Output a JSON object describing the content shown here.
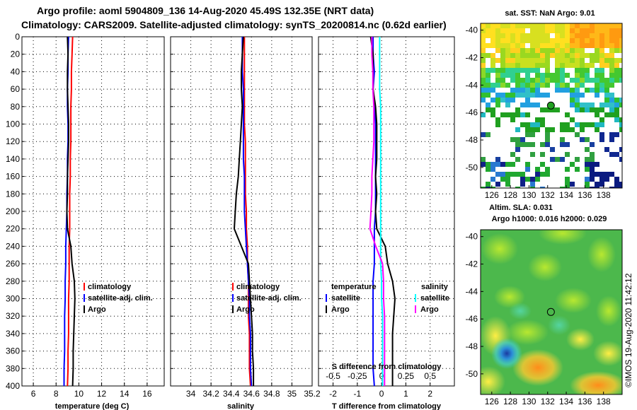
{
  "header": {
    "title_line1": "Argo profile: aoml 5904809_136 14-Aug-2020 45.49S 132.35E (NRT data)",
    "title_line2": "Climatology: CARS2009. Satellite-adjusted climatology: synTS_20200814.nc (0.62d earlier)"
  },
  "colors": {
    "climatology": "#ff0000",
    "satellite": "#0000ff",
    "argo": "#000000",
    "salinity_sat": "#00ffff",
    "salinity_argo": "#ff00ff"
  },
  "chart_data": [
    {
      "type": "line",
      "name": "temperature-profile",
      "xlabel": "temperature (deg C)",
      "ylabel": "depth",
      "xlim": [
        5,
        17.5
      ],
      "ylim": [
        0,
        400
      ],
      "y_inverted": true,
      "xticks": [
        6,
        8,
        10,
        12,
        14,
        16
      ],
      "yticks": [
        0,
        20,
        40,
        60,
        80,
        100,
        120,
        140,
        160,
        180,
        200,
        220,
        240,
        260,
        280,
        300,
        320,
        340,
        360,
        380,
        400
      ],
      "grid": true,
      "legend": [
        "climatology",
        "satellite-adj. clim.",
        "Argo"
      ],
      "series": [
        {
          "name": "climatology",
          "color": "#ff0000",
          "x": [
            9.45,
            9.4,
            9.35,
            9.35,
            9.3,
            9.3,
            9.3,
            9.25,
            9.25,
            9.2,
            9.2,
            9.2,
            9.15,
            9.15,
            9.15,
            9.1,
            9.1,
            9.1,
            9.05,
            9.05,
            9.0
          ],
          "depth": [
            0,
            20,
            40,
            60,
            80,
            100,
            120,
            140,
            160,
            180,
            200,
            220,
            240,
            260,
            280,
            300,
            320,
            340,
            360,
            380,
            400
          ]
        },
        {
          "name": "satellite-adj. clim.",
          "color": "#0000ff",
          "x": [
            9.1,
            9.05,
            9.05,
            9.0,
            9.0,
            9.05,
            9.05,
            9.0,
            9.0,
            8.95,
            8.95,
            8.9,
            8.85,
            8.85,
            8.8,
            8.8,
            8.75,
            8.75,
            8.75,
            8.7,
            8.7
          ],
          "depth": [
            0,
            20,
            40,
            60,
            80,
            100,
            120,
            140,
            160,
            180,
            200,
            220,
            240,
            260,
            280,
            300,
            320,
            340,
            360,
            380,
            400
          ]
        },
        {
          "name": "Argo",
          "color": "#000000",
          "x": [
            9.0,
            9.05,
            9.0,
            9.0,
            9.05,
            9.1,
            9.1,
            9.05,
            9.0,
            9.0,
            8.95,
            9.0,
            9.3,
            9.4,
            9.6,
            9.65,
            9.6,
            9.55,
            9.5,
            9.5,
            9.45
          ],
          "depth": [
            0,
            20,
            40,
            60,
            80,
            100,
            120,
            140,
            160,
            180,
            200,
            220,
            240,
            260,
            280,
            300,
            320,
            340,
            360,
            380,
            400
          ]
        }
      ]
    },
    {
      "type": "line",
      "name": "salinity-profile",
      "xlabel": "salinity",
      "xlim": [
        33.8,
        35.2
      ],
      "ylim": [
        0,
        400
      ],
      "y_inverted": true,
      "xticks": [
        34,
        34.2,
        34.4,
        34.6,
        34.8,
        35,
        35.2
      ],
      "grid": true,
      "legend": [
        "climatology",
        "satellite-adj. clim.",
        "Argo"
      ],
      "series": [
        {
          "name": "climatology",
          "color": "#ff0000",
          "x": [
            34.53,
            34.53,
            34.53,
            34.53,
            34.53,
            34.53,
            34.54,
            34.54,
            34.54,
            34.54,
            34.55,
            34.55,
            34.56,
            34.56,
            34.57,
            34.57,
            34.57,
            34.58,
            34.58,
            34.58,
            34.59
          ],
          "depth": [
            0,
            20,
            40,
            60,
            80,
            100,
            120,
            140,
            160,
            180,
            200,
            220,
            240,
            260,
            280,
            300,
            320,
            340,
            360,
            380,
            400
          ]
        },
        {
          "name": "satellite-adj. clim.",
          "color": "#0000ff",
          "x": [
            34.51,
            34.51,
            34.51,
            34.52,
            34.52,
            34.52,
            34.52,
            34.52,
            34.53,
            34.53,
            34.53,
            34.54,
            34.55,
            34.56,
            34.57,
            34.58,
            34.58,
            34.59,
            34.59,
            34.59,
            34.6
          ],
          "depth": [
            0,
            20,
            40,
            60,
            80,
            100,
            120,
            140,
            160,
            180,
            200,
            220,
            240,
            260,
            280,
            300,
            320,
            340,
            360,
            380,
            400
          ]
        },
        {
          "name": "Argo",
          "color": "#000000",
          "x": [
            34.52,
            34.51,
            34.5,
            34.5,
            34.51,
            34.5,
            34.49,
            34.48,
            34.47,
            34.45,
            34.44,
            34.43,
            34.5,
            34.57,
            34.58,
            34.59,
            34.6,
            34.61,
            34.61,
            34.62,
            34.62
          ],
          "depth": [
            0,
            20,
            40,
            60,
            80,
            100,
            120,
            140,
            160,
            180,
            200,
            220,
            240,
            260,
            280,
            300,
            320,
            340,
            360,
            380,
            400
          ]
        }
      ]
    },
    {
      "type": "line",
      "name": "difference-profile",
      "xlabel": "T difference from climatology",
      "top_axis_label": "S difference from climatology",
      "xlim": [
        -2.6,
        3.0
      ],
      "ylim": [
        0,
        400
      ],
      "y_inverted": true,
      "xticks": [
        -2,
        -1,
        0,
        1,
        2
      ],
      "top_ticks": [
        "-0.5",
        "-0.25",
        "0",
        "0.25",
        "0.5"
      ],
      "top_ticks_values": [
        -0.5,
        -0.25,
        0,
        0.25,
        0.5
      ],
      "s_scale_factor": 4,
      "grid": true,
      "legend_temperature": {
        "heading": "temperature",
        "items": [
          "satellite",
          "Argo"
        ]
      },
      "legend_salinity": {
        "heading": "salinity",
        "items": [
          "satellite",
          "Argo"
        ]
      },
      "series": [
        {
          "name": "temperature satellite",
          "color": "#0000ff",
          "x": [
            -0.35,
            -0.35,
            -0.3,
            -0.35,
            -0.3,
            -0.25,
            -0.25,
            -0.25,
            -0.25,
            -0.25,
            -0.25,
            -0.3,
            -0.3,
            -0.3,
            -0.35,
            -0.35,
            -0.35,
            -0.35,
            -0.35,
            -0.35,
            -0.3
          ],
          "depth": [
            0,
            20,
            40,
            60,
            80,
            100,
            120,
            140,
            160,
            180,
            200,
            220,
            240,
            260,
            280,
            300,
            320,
            340,
            360,
            380,
            400
          ]
        },
        {
          "name": "temperature Argo",
          "color": "#000000",
          "x": [
            -0.45,
            -0.35,
            -0.35,
            -0.35,
            -0.25,
            -0.2,
            -0.2,
            -0.2,
            -0.25,
            -0.2,
            -0.25,
            -0.2,
            0.15,
            0.25,
            0.45,
            0.55,
            0.5,
            0.45,
            0.45,
            0.45,
            0.45
          ],
          "depth": [
            0,
            20,
            40,
            60,
            80,
            100,
            120,
            140,
            160,
            180,
            200,
            220,
            240,
            260,
            280,
            300,
            320,
            340,
            360,
            380,
            400
          ]
        },
        {
          "name": "salinity satellite",
          "color": "#00ffff",
          "x_s": [
            -0.02,
            -0.02,
            -0.02,
            -0.02,
            -0.01,
            -0.01,
            -0.01,
            -0.01,
            -0.01,
            -0.01,
            -0.01,
            -0.01,
            -0.01,
            -0.01,
            0.0,
            0.0,
            0.01,
            0.01,
            0.01,
            0.01,
            0.01
          ],
          "depth": [
            0,
            20,
            40,
            60,
            80,
            100,
            120,
            140,
            160,
            180,
            200,
            220,
            240,
            260,
            280,
            300,
            320,
            340,
            360,
            380,
            400
          ]
        },
        {
          "name": "salinity Argo",
          "color": "#ff00ff",
          "x_s": [
            -0.1,
            -0.1,
            -0.09,
            -0.09,
            -0.08,
            -0.08,
            -0.08,
            -0.09,
            -0.1,
            -0.1,
            -0.11,
            -0.12,
            -0.06,
            0.01,
            0.02,
            0.02,
            0.03,
            0.03,
            0.03,
            0.03,
            0.03
          ],
          "depth": [
            0,
            20,
            40,
            60,
            80,
            100,
            120,
            140,
            160,
            180,
            200,
            220,
            240,
            260,
            280,
            300,
            320,
            340,
            360,
            380,
            400
          ]
        }
      ]
    },
    {
      "type": "heatmap",
      "name": "sst-map",
      "title": "sat. SST: NaN Argo: 9.01",
      "xlim": [
        124.8,
        140
      ],
      "ylim": [
        -51.5,
        -39.5
      ],
      "xticks": [
        126,
        128,
        130,
        132,
        134,
        136,
        138
      ],
      "yticks": [
        -40,
        -42,
        -44,
        -46,
        -48,
        -50
      ],
      "float_position": {
        "lon": 132.35,
        "lat": -45.49
      }
    },
    {
      "type": "heatmap",
      "name": "sla-map",
      "title_line1": "Altim. SLA: 0.031",
      "title_line2": "Argo h1000: 0.016 h2000: 0.029",
      "xlim": [
        124.8,
        140
      ],
      "ylim": [
        -51.5,
        -39.5
      ],
      "xticks": [
        126,
        128,
        130,
        132,
        134,
        136,
        138
      ],
      "yticks": [
        -40,
        -42,
        -44,
        -46,
        -48,
        -50
      ],
      "float_position": {
        "lon": 132.35,
        "lat": -45.49
      }
    }
  ],
  "credit": "©IMOS 19-Aug-2020 11:42:12"
}
